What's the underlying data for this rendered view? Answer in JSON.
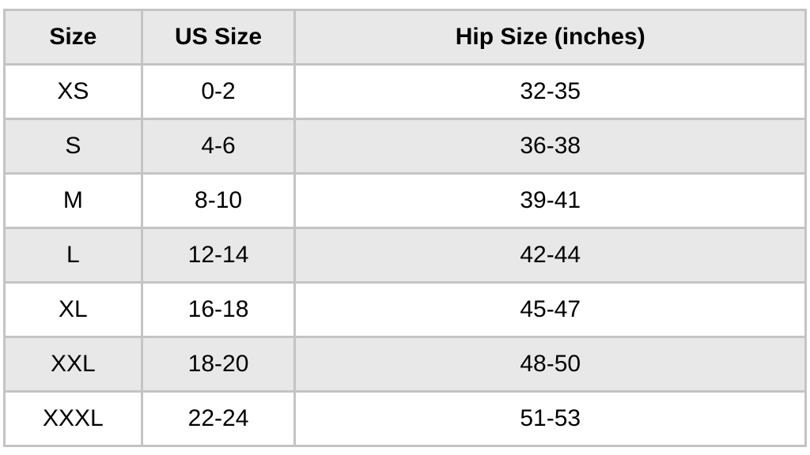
{
  "size_table": {
    "columns": [
      "Size",
      "US Size",
      "Hip Size (inches)"
    ],
    "column_widths_pct": [
      17,
      19,
      64
    ],
    "rows": [
      [
        "XS",
        "0-2",
        "32-35"
      ],
      [
        "S",
        "4-6",
        "36-38"
      ],
      [
        "M",
        "8-10",
        "39-41"
      ],
      [
        "L",
        "12-14",
        "42-44"
      ],
      [
        "XL",
        "16-18",
        "45-47"
      ],
      [
        "XXL",
        "18-20",
        "48-50"
      ],
      [
        "XXXL",
        "22-24",
        "51-53"
      ]
    ],
    "header_bg_color": "#e8e8e8",
    "row_odd_bg_color": "#ffffff",
    "row_even_bg_color": "#e8e8e8",
    "border_color": "#c4c4c4",
    "text_color": "#000000",
    "header_fontsize": 30,
    "cell_fontsize": 30,
    "header_fontweight": "bold",
    "cell_fontweight": "normal"
  }
}
